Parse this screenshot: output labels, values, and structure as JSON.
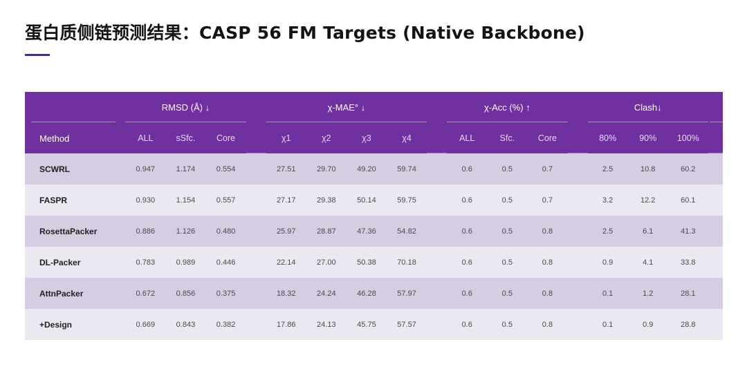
{
  "title": "蛋白质侧链预测结果：CASP 56 FM Targets (Native Backbone)",
  "groups": {
    "rmsd": "RMSD (Å) ↓",
    "mae": "χ-MAE° ↓",
    "acc": "χ-Acc (%) ↑",
    "clash": "Clash↓"
  },
  "columns": [
    "Method",
    "ALL",
    "sSfc.",
    "Core",
    "χ1",
    "χ2",
    "χ3",
    "χ4",
    "ALL",
    "Sfc.",
    "Core",
    "80%",
    "90%",
    "100%"
  ],
  "rows": [
    [
      "SCWRL",
      "0.947",
      "1.174",
      "0.554",
      "27.51",
      "29.70",
      "49.20",
      "59.74",
      "0.6",
      "0.5",
      "0.7",
      "2.5",
      "10.8",
      "60.2"
    ],
    [
      "FASPR",
      "0.930",
      "1.154",
      "0.557",
      "27.17",
      "29.38",
      "50.14",
      "59.75",
      "0.6",
      "0.5",
      "0.7",
      "3.2",
      "12.2",
      "60.1"
    ],
    [
      "RosettaPacker",
      "0.886",
      "1.126",
      "0.480",
      "25.97",
      "28.87",
      "47.36",
      "54.82",
      "0.6",
      "0.5",
      "0.8",
      "2.5",
      "6.1",
      "41.3"
    ],
    [
      "DL-Packer",
      "0.783",
      "0.989",
      "0.446",
      "22.14",
      "27.00",
      "50.38",
      "70.18",
      "0.6",
      "0.5",
      "0.8",
      "0.9",
      "4.1",
      "33.8"
    ],
    [
      "AttnPacker",
      "0.672",
      "0.856",
      "0.375",
      "18.32",
      "24.24",
      "46.28",
      "57.97",
      "0.6",
      "0.5",
      "0.8",
      "0.1",
      "1.2",
      "28.1"
    ],
    [
      "+Design",
      "0.669",
      "0.843",
      "0.382",
      "17.86",
      "24.13",
      "45.75",
      "57.57",
      "0.6",
      "0.5",
      "0.8",
      "0.1",
      "0.9",
      "28.8"
    ]
  ]
}
